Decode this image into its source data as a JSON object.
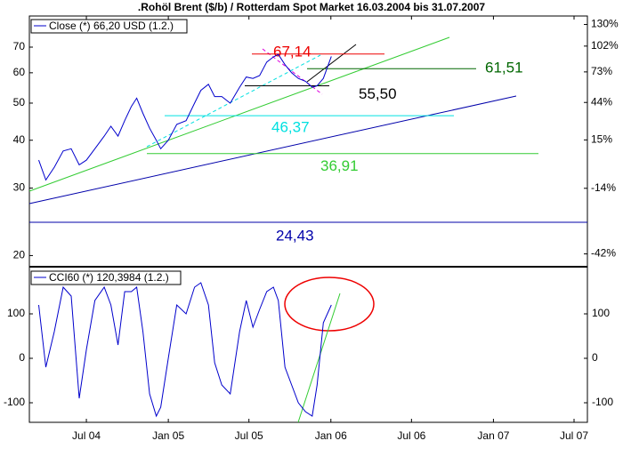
{
  "chart_data": [
    {
      "type": "line",
      "title": ".Rohöl Brent ($/b) / Rotterdam Spot Market 16.03.2004 bis 31.07.2007",
      "legend": "Close (*) 66,20 USD (1.2.)",
      "legend_position": "upper left",
      "log_scale": true,
      "xlim": [
        "2004-02-24",
        "2007-07-31"
      ],
      "ylim": [
        18.7,
        84.4
      ],
      "yticks": [
        20,
        30,
        40,
        50,
        60,
        70
      ],
      "y2lim": [
        -46.3,
        142
      ],
      "y2ticks": [
        {
          "value": 130,
          "label": "130%"
        },
        {
          "value": 102,
          "label": "102%"
        },
        {
          "value": 73,
          "label": "73%"
        },
        {
          "value": 44,
          "label": "44%"
        },
        {
          "value": 15,
          "label": "15%"
        },
        {
          "value": -14,
          "label": "-14%"
        },
        {
          "value": -42,
          "label": "-42%"
        }
      ],
      "color": "#0000cc",
      "x": [
        "2004-03-16",
        "2004-04-01",
        "2004-04-20",
        "2004-05-10",
        "2004-05-28",
        "2004-06-15",
        "2004-07-01",
        "2004-07-20",
        "2004-08-10",
        "2004-08-25",
        "2004-09-10",
        "2004-09-25",
        "2004-10-10",
        "2004-10-22",
        "2004-11-05",
        "2004-11-20",
        "2004-12-05",
        "2004-12-15",
        "2005-01-01",
        "2005-01-20",
        "2005-02-10",
        "2005-03-01",
        "2005-03-15",
        "2005-04-01",
        "2005-04-15",
        "2005-05-01",
        "2005-05-20",
        "2005-06-10",
        "2005-06-25",
        "2005-07-10",
        "2005-07-25",
        "2005-08-10",
        "2005-08-25",
        "2005-09-05",
        "2005-09-20",
        "2005-10-05",
        "2005-10-20",
        "2005-11-05",
        "2005-11-20",
        "2005-12-01",
        "2005-12-15",
        "2006-01-02"
      ],
      "values": [
        35.5,
        31.5,
        34,
        37.5,
        38,
        34.5,
        35.5,
        38,
        41,
        43.5,
        41,
        45,
        49,
        51.5,
        47,
        43,
        40,
        38,
        40,
        44,
        45,
        50,
        54,
        56,
        52,
        52,
        50,
        55,
        58.5,
        58,
        59,
        64,
        66,
        67,
        63,
        60,
        58,
        57,
        55,
        55.5,
        58,
        66.2
      ],
      "levels": [
        {
          "value": 67.14,
          "label": "67,14",
          "color": "#ee0000"
        },
        {
          "value": 61.51,
          "label": "61,51",
          "color": "#006600"
        },
        {
          "value": 55.5,
          "label": "55,50",
          "color": "#000000"
        },
        {
          "value": 46.37,
          "label": "46,37",
          "color": "#00e0e0"
        },
        {
          "value": 36.91,
          "label": "36,91",
          "color": "#33cc33"
        },
        {
          "value": 24.43,
          "label": "24,43",
          "color": "#0000aa"
        }
      ]
    },
    {
      "type": "line",
      "legend": "CCI60 (*) 120,3984 (1.2.)",
      "legend_position": "upper left",
      "xlim": [
        "2004-02-24",
        "2007-07-31"
      ],
      "ylim": [
        -144,
        206
      ],
      "yticks": [
        -100,
        0,
        100
      ],
      "color": "#0000cc",
      "xticks": [
        {
          "value": "2004-07-01",
          "label": "Jul 04"
        },
        {
          "value": "2005-01-01",
          "label": "Jan 05"
        },
        {
          "value": "2005-07-01",
          "label": "Jul 05"
        },
        {
          "value": "2006-01-01",
          "label": "Jan 06"
        },
        {
          "value": "2006-07-01",
          "label": "Jul 06"
        },
        {
          "value": "2007-01-01",
          "label": "Jan 07"
        },
        {
          "value": "2007-07-01",
          "label": "Jul 07"
        }
      ],
      "x": [
        "2004-03-16",
        "2004-04-01",
        "2004-04-20",
        "2004-05-10",
        "2004-05-28",
        "2004-06-15",
        "2004-07-01",
        "2004-07-20",
        "2004-08-10",
        "2004-08-25",
        "2004-09-10",
        "2004-09-25",
        "2004-10-10",
        "2004-10-22",
        "2004-11-05",
        "2004-11-20",
        "2004-12-05",
        "2004-12-15",
        "2005-01-01",
        "2005-01-20",
        "2005-02-10",
        "2005-03-01",
        "2005-03-15",
        "2005-04-01",
        "2005-04-15",
        "2005-05-01",
        "2005-05-20",
        "2005-06-10",
        "2005-06-25",
        "2005-07-10",
        "2005-07-25",
        "2005-08-10",
        "2005-08-25",
        "2005-09-05",
        "2005-09-20",
        "2005-10-05",
        "2005-10-20",
        "2005-11-05",
        "2005-11-20",
        "2005-12-01",
        "2005-12-15",
        "2006-01-02"
      ],
      "values": [
        120,
        -20,
        60,
        160,
        140,
        -90,
        20,
        130,
        160,
        120,
        30,
        150,
        150,
        160,
        60,
        -80,
        -130,
        -110,
        0,
        120,
        100,
        160,
        170,
        120,
        -10,
        -60,
        -80,
        60,
        130,
        70,
        110,
        150,
        160,
        130,
        -20,
        -60,
        -100,
        -120,
        -130,
        -60,
        80,
        120
      ]
    }
  ]
}
